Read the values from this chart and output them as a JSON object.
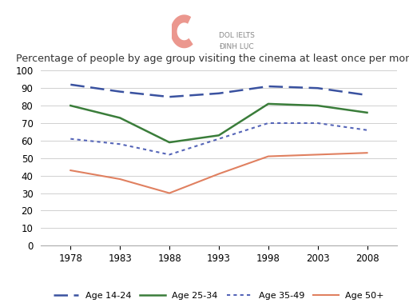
{
  "title": "Percentage of people by age group visiting the cinema at least once per month",
  "years": [
    1978,
    1983,
    1988,
    1993,
    1998,
    2003,
    2008
  ],
  "age_1424": [
    92,
    88,
    85,
    87,
    91,
    90,
    86
  ],
  "age_2534": [
    80,
    73,
    59,
    63,
    81,
    80,
    76
  ],
  "age_3549": [
    61,
    58,
    52,
    61,
    70,
    70,
    66
  ],
  "age_50plus": [
    43,
    38,
    30,
    41,
    51,
    52,
    53
  ],
  "color_1424": "#3a52a0",
  "color_2534": "#3a7d3a",
  "color_3549": "#5565b8",
  "color_50plus": "#e08060",
  "ylim": [
    0,
    100
  ],
  "yticks": [
    0,
    10,
    20,
    30,
    40,
    50,
    60,
    70,
    80,
    90,
    100
  ],
  "background_color": "#ffffff",
  "grid_color": "#d0d0d0",
  "title_fontsize": 9.2,
  "tick_fontsize": 8.5,
  "legend_fontsize": 8.0,
  "logo_text": "DOL IELTS\nĐINH LỤC",
  "logo_color": "#888888",
  "logo_pink": "#e8857a"
}
